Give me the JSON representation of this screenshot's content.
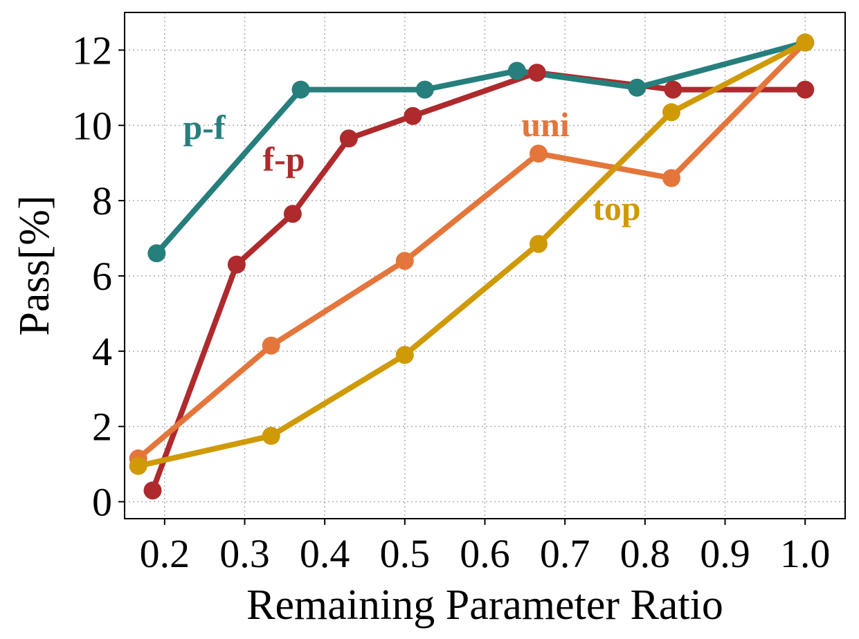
{
  "chart_data": {
    "type": "line",
    "xlabel": "Remaining Parameter Ratio",
    "ylabel": "Pass[%]",
    "xlim": [
      0.15,
      1.05
    ],
    "ylim": [
      -0.45,
      13.0
    ],
    "xticks": [
      "0.2",
      "0.3",
      "0.4",
      "0.5",
      "0.6",
      "0.7",
      "0.8",
      "0.9",
      "1.0"
    ],
    "yticks": [
      "0",
      "2",
      "4",
      "6",
      "8",
      "10",
      "12"
    ],
    "grid": true,
    "series": [
      {
        "name": "p-f",
        "color": "#267f7c",
        "x": [
          0.19,
          0.37,
          0.525,
          0.64,
          0.79,
          1.0
        ],
        "y": [
          6.6,
          10.95,
          10.95,
          11.45,
          11.0,
          12.2
        ]
      },
      {
        "name": "f-p",
        "color": "#ae2a2d",
        "x": [
          0.185,
          0.29,
          0.36,
          0.43,
          0.51,
          0.665,
          0.835,
          1.0
        ],
        "y": [
          0.3,
          6.3,
          7.65,
          9.65,
          10.25,
          11.4,
          10.95,
          10.95
        ]
      },
      {
        "name": "uni",
        "color": "#e4763c",
        "x": [
          0.167,
          0.333,
          0.5,
          0.667,
          0.833,
          1.0
        ],
        "y": [
          1.15,
          4.15,
          6.4,
          9.25,
          8.6,
          12.2
        ]
      },
      {
        "name": "top",
        "color": "#cf9a06",
        "x": [
          0.167,
          0.333,
          0.5,
          0.667,
          0.833,
          1.0
        ],
        "y": [
          0.95,
          1.75,
          3.9,
          6.85,
          10.35,
          12.2
        ]
      }
    ]
  }
}
